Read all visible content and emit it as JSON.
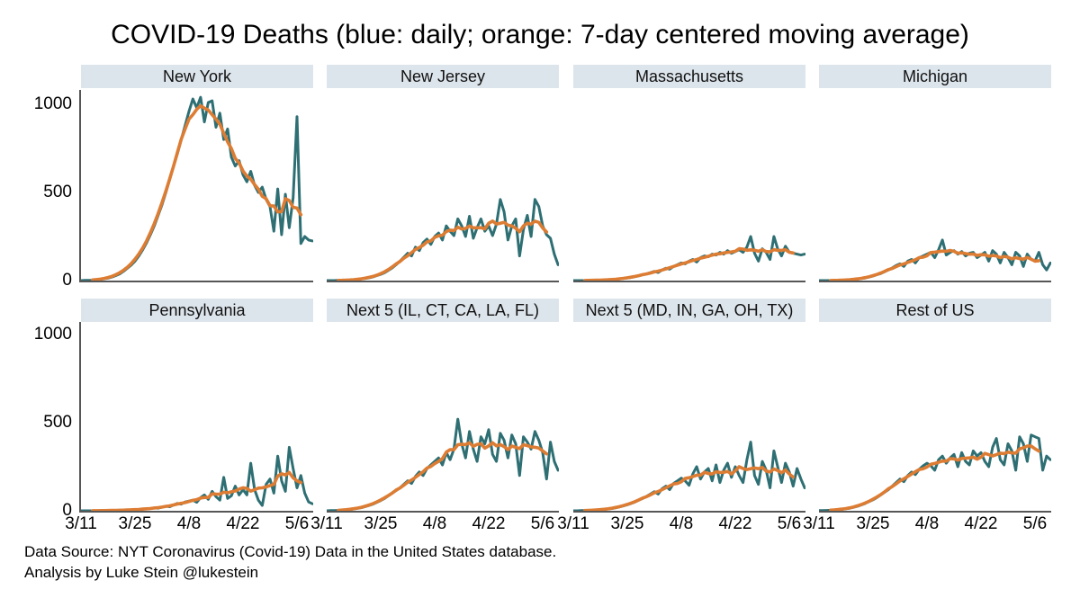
{
  "title": "COVID-19 Deaths (blue: daily; orange: 7-day centered moving average)",
  "footer": {
    "line1": "Data Source: NYT Coronavirus (Covid-19) Data in the United States database.",
    "line2": "Analysis by Luke Stein @lukestein"
  },
  "colors": {
    "daily_line": "#2e6f74",
    "moving_average_line": "#dd7c33",
    "panel_header_bg": "#dde5ec",
    "axis": "#565656",
    "text": "#000000"
  },
  "chart_data": {
    "type": "line",
    "layout": "2 rows x 4 columns small multiples, shared axes",
    "x_tick_labels": [
      "3/11",
      "3/25",
      "4/8",
      "4/22",
      "5/6"
    ],
    "x_tick_days": [
      0,
      14,
      28,
      42,
      56
    ],
    "x_start_date": "3/11",
    "x_end_date": "5/10",
    "n_days": 61,
    "y_ticks": [
      0,
      500,
      1000
    ],
    "ylim": [
      0,
      1080
    ],
    "grid": false,
    "legend": [
      {
        "name": "daily",
        "color_word": "blue"
      },
      {
        "name": "7-day centered moving average",
        "color_word": "orange"
      }
    ],
    "moving_average_window": 7,
    "panels": [
      {
        "title": "New York",
        "daily": [
          0,
          1,
          1,
          2,
          4,
          7,
          10,
          14,
          20,
          28,
          38,
          52,
          70,
          88,
          110,
          140,
          175,
          215,
          260,
          310,
          370,
          430,
          500,
          575,
          650,
          720,
          800,
          880,
          960,
          1030,
          980,
          1040,
          900,
          1010,
          1020,
          870,
          950,
          800,
          860,
          700,
          650,
          680,
          600,
          560,
          620,
          540,
          500,
          530,
          460,
          420,
          280,
          520,
          260,
          490,
          300,
          470,
          930,
          210,
          250,
          230,
          225
        ]
      },
      {
        "title": "New Jersey",
        "daily": [
          0,
          0,
          0,
          1,
          1,
          2,
          3,
          4,
          6,
          9,
          12,
          16,
          21,
          28,
          35,
          45,
          58,
          72,
          90,
          110,
          132,
          155,
          140,
          190,
          170,
          215,
          235,
          205,
          250,
          270,
          230,
          310,
          280,
          255,
          350,
          310,
          250,
          365,
          240,
          300,
          350,
          280,
          310,
          255,
          320,
          460,
          390,
          230,
          310,
          350,
          140,
          290,
          370,
          250,
          460,
          420,
          310,
          260,
          240,
          150,
          90
        ]
      },
      {
        "title": "Massachusetts",
        "daily": [
          0,
          0,
          0,
          0,
          1,
          1,
          2,
          2,
          3,
          4,
          5,
          7,
          9,
          12,
          15,
          18,
          22,
          27,
          33,
          38,
          45,
          52,
          46,
          60,
          70,
          65,
          80,
          90,
          100,
          95,
          110,
          120,
          105,
          130,
          140,
          135,
          150,
          145,
          160,
          150,
          170,
          155,
          165,
          175,
          160,
          190,
          250,
          155,
          110,
          180,
          160,
          120,
          250,
          180,
          140,
          195,
          160,
          155,
          150,
          145,
          150
        ]
      },
      {
        "title": "Michigan",
        "daily": [
          0,
          0,
          0,
          0,
          1,
          1,
          2,
          3,
          4,
          6,
          8,
          11,
          15,
          20,
          26,
          33,
          40,
          50,
          60,
          72,
          85,
          95,
          80,
          110,
          120,
          100,
          130,
          140,
          150,
          160,
          130,
          175,
          230,
          145,
          160,
          170,
          150,
          165,
          140,
          155,
          160,
          130,
          145,
          160,
          110,
          170,
          150,
          100,
          160,
          130,
          90,
          160,
          140,
          80,
          150,
          120,
          110,
          160,
          90,
          60,
          100
        ]
      },
      {
        "title": "Pennsylvania",
        "daily": [
          0,
          0,
          0,
          0,
          0,
          1,
          1,
          1,
          2,
          2,
          3,
          4,
          4,
          5,
          6,
          7,
          9,
          11,
          13,
          16,
          15,
          20,
          26,
          23,
          33,
          42,
          38,
          50,
          55,
          60,
          48,
          75,
          90,
          65,
          110,
          80,
          60,
          190,
          70,
          85,
          140,
          90,
          120,
          90,
          270,
          120,
          60,
          30,
          150,
          180,
          100,
          310,
          170,
          110,
          360,
          240,
          130,
          200,
          100,
          50,
          40
        ]
      },
      {
        "title": "Next 5 (IL, CT, CA, LA, FL)",
        "daily": [
          0,
          1,
          1,
          2,
          3,
          5,
          7,
          10,
          14,
          18,
          24,
          30,
          38,
          48,
          58,
          70,
          85,
          100,
          115,
          130,
          150,
          170,
          155,
          195,
          220,
          200,
          240,
          260,
          280,
          300,
          260,
          330,
          290,
          350,
          520,
          380,
          300,
          450,
          350,
          280,
          420,
          380,
          460,
          320,
          280,
          440,
          400,
          300,
          430,
          380,
          200,
          420,
          390,
          350,
          450,
          400,
          330,
          180,
          390,
          280,
          230
        ]
      },
      {
        "title": "Next 5 (MD, IN, GA, OH, TX)",
        "daily": [
          0,
          0,
          1,
          1,
          2,
          3,
          4,
          6,
          8,
          10,
          13,
          17,
          22,
          28,
          34,
          42,
          50,
          60,
          70,
          82,
          95,
          108,
          95,
          125,
          140,
          120,
          155,
          170,
          185,
          170,
          145,
          210,
          250,
          180,
          220,
          240,
          170,
          260,
          160,
          230,
          270,
          190,
          250,
          200,
          160,
          290,
          390,
          200,
          150,
          280,
          230,
          130,
          340,
          250,
          160,
          270,
          220,
          140,
          240,
          180,
          130
        ]
      },
      {
        "title": "Rest of US",
        "daily": [
          1,
          1,
          2,
          3,
          4,
          6,
          8,
          11,
          15,
          20,
          26,
          33,
          42,
          52,
          62,
          75,
          90,
          105,
          120,
          140,
          160,
          180,
          165,
          200,
          220,
          205,
          235,
          255,
          270,
          255,
          230,
          290,
          310,
          270,
          300,
          320,
          250,
          330,
          280,
          260,
          340,
          310,
          330,
          280,
          250,
          360,
          410,
          290,
          260,
          380,
          340,
          230,
          420,
          380,
          280,
          430,
          420,
          410,
          230,
          310,
          290
        ]
      }
    ]
  }
}
